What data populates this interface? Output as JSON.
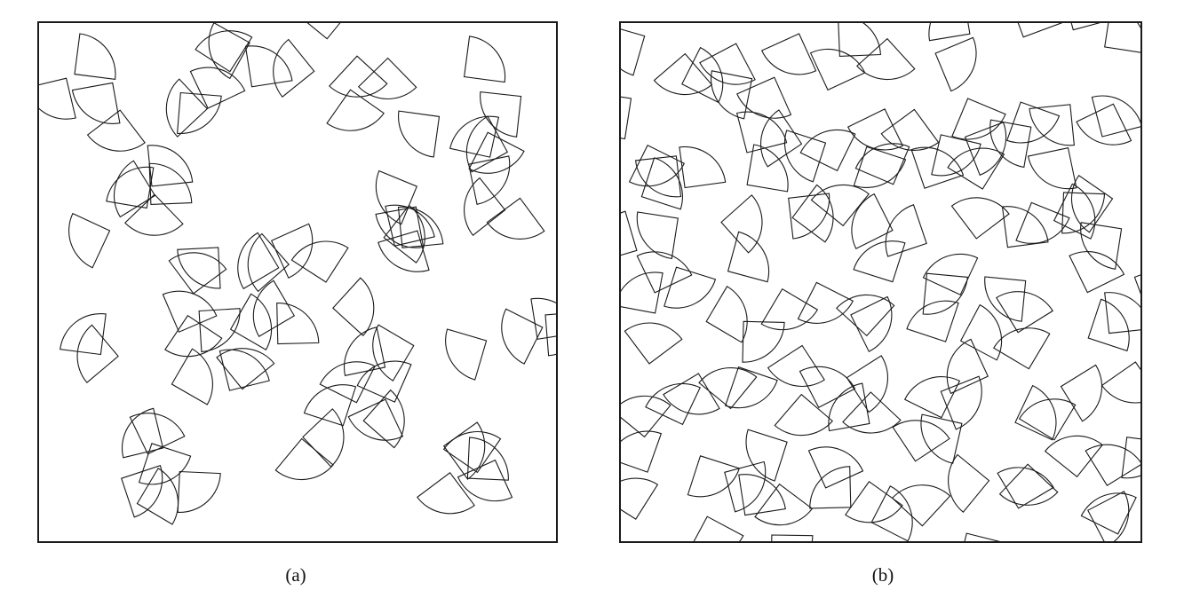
{
  "panels": [
    {
      "id": "a",
      "label": "(a)",
      "arrangement": "clustered",
      "shape": "quarter-disc sectors",
      "stroke": "#1a1a1a"
    },
    {
      "id": "b",
      "label": "(b)",
      "arrangement": "uniform",
      "shape": "quarter-disc sectors",
      "stroke": "#1a1a1a"
    }
  ]
}
